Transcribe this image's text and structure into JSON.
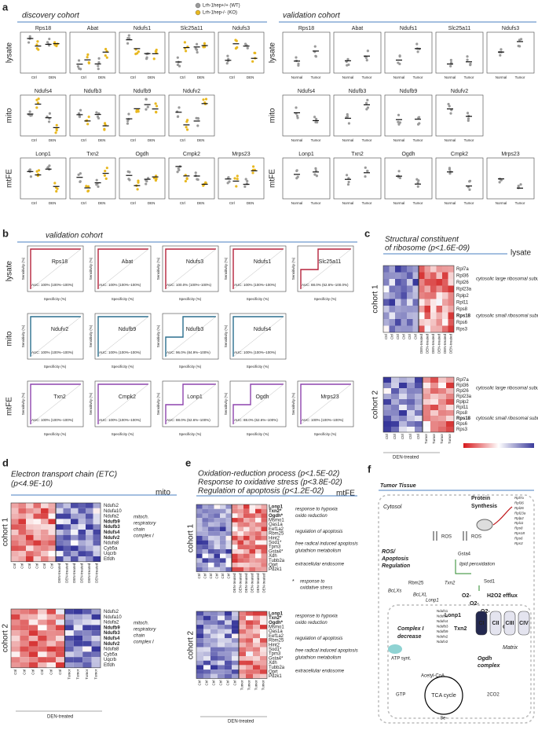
{
  "panel_a": {
    "letter": "a",
    "discovery_title": "discovery cohort",
    "validation_title": "validation cohort",
    "legend": [
      "Lrh-1hep+/+ (WT)",
      "Lrh-1hep-/- (KO)"
    ],
    "legend_colors": [
      "#9a9a9a",
      "#e8b820"
    ],
    "discovery_x": [
      "Ctrl",
      "DEN"
    ],
    "validation_x": [
      "Normal",
      "Tumor"
    ],
    "rows": [
      {
        "label": "lysate",
        "color": "#b5223b",
        "discovery": [
          "Rps18",
          "Abat",
          "Ndufs1",
          "Slc25a11",
          "Ndufs3"
        ],
        "validation": [
          "Rps18",
          "Abat",
          "Ndufs1",
          "Slc25a11",
          "Ndufs3"
        ]
      },
      {
        "label": "mito",
        "color": "#2b6f8e",
        "discovery": [
          "Ndufs4",
          "Ndufb3",
          "Ndufb9",
          "Ndufv2"
        ],
        "validation": [
          "Ndufs4",
          "Ndufb3",
          "Ndufb9",
          "Ndufv2"
        ]
      },
      {
        "label": "mtFE",
        "color": "#8e44ad",
        "discovery": [
          "Lonp1",
          "Txn2",
          "Ogdh",
          "Cmpk2",
          "Mrps23"
        ],
        "validation": [
          "Lonp1",
          "Txn2",
          "Ogdh",
          "Cmpk2",
          "Mrps23"
        ]
      }
    ]
  },
  "panel_b": {
    "letter": "b",
    "title": "validation cohort",
    "ylabel": "Sensitivity (%)",
    "xlabel": "Specificity (%)",
    "rows": [
      {
        "label": "lysate",
        "color": "#b5223b",
        "plots": [
          {
            "gene": "Rps18",
            "auc": "AUC: 100% (100%–100%)"
          },
          {
            "gene": "Abat",
            "auc": "AUC: 100% (100%–100%)"
          },
          {
            "gene": "Ndufs3",
            "auc": "AUC: 100.0% (100%–100%)"
          },
          {
            "gene": "Ndufs1",
            "auc": "AUC: 100% (100%–100%)"
          },
          {
            "gene": "Slc25a11",
            "auc": "AUC: 88.0% (62.6%–100.0%)"
          }
        ]
      },
      {
        "label": "mito",
        "color": "#2b6f8e",
        "plots": [
          {
            "gene": "Ndufv2",
            "auc": "AUC: 100% (100%–100%)"
          },
          {
            "gene": "Ndufb9",
            "auc": "AUC: 100% (100%–100%)"
          },
          {
            "gene": "Ndufb3",
            "auc": "AUC: 96.0% (84.9%–100%)"
          },
          {
            "gene": "Ndufs4",
            "auc": "AUC: 100% (100%–100%)"
          }
        ]
      },
      {
        "label": "mtFE",
        "color": "#8e44ad",
        "plots": [
          {
            "gene": "Txn2",
            "auc": "AUC: 100% (100%–100%)"
          },
          {
            "gene": "Cmpk2",
            "auc": "AUC: 100% (100%–100%)"
          },
          {
            "gene": "Lonp1",
            "auc": "AUC: 88.0% (62.6%–100%)"
          },
          {
            "gene": "Ogdh",
            "auc": "AUC: 88.0% (62.6%–100%)"
          },
          {
            "gene": "Mrps23",
            "auc": "AUC: 100% (100%–100%)"
          }
        ]
      }
    ]
  },
  "panel_c": {
    "letter": "c",
    "title": [
      "Structural constituent",
      "of ribosome (p<1.6E-09)"
    ],
    "tag": "lysate",
    "cohorts": [
      "cohort 1",
      "cohort 2"
    ],
    "genes": [
      "Rpl7a",
      "Rpl36",
      "Rpl26",
      "Rpl23a",
      "Rplp2",
      "Rpl11",
      "Rps8",
      "Rps18",
      "Rps6",
      "Rps3"
    ],
    "annotations": [
      "cytosolic large ribosomal subunit",
      "cytosolic small ribosomal subunit"
    ],
    "cohort1_columns": [
      "Ctrl",
      "Ctrl",
      "Ctrl",
      "Ctrl",
      "Ctrl",
      "Ctrl",
      "DEN-treated",
      "DEN-treated",
      "DEN-treated",
      "DEN-treated",
      "DEN-treated",
      "DEN-treated"
    ],
    "cohort2_columns": [
      "Ctrl",
      "Ctrl",
      "Ctrl",
      "Ctrl",
      "Ctrl",
      "Tumor",
      "Tumor",
      "Tumor",
      "Tumor"
    ],
    "footer": "DEN-treated"
  },
  "panel_d": {
    "letter": "d",
    "title": [
      "Electron transport chain (ETC)",
      "(p<4.9E-10)"
    ],
    "tag": "mito",
    "cohorts": [
      "cohort 1",
      "cohort 2"
    ],
    "genes": [
      "Ndufs2",
      "Ndufa10",
      "Ndufa2",
      "Ndufb9",
      "Ndufb3",
      "Ndufs4",
      "Ndufv2",
      "Ndufa8",
      "Cyb5a",
      "Uqcrb",
      "Etfdh"
    ],
    "annotation": [
      "mitoch.",
      "respiratory",
      "chain",
      "complex I"
    ],
    "cohort1_columns": [
      "Ctrl",
      "Ctrl",
      "Ctrl",
      "Ctrl",
      "Ctrl",
      "Ctrl",
      "DEN-treated",
      "DEN-treated",
      "DEN-treated",
      "DEN-treated",
      "DEN-treated",
      "DEN-treated"
    ],
    "cohort2_columns": [
      "Ctrl",
      "Ctrl",
      "Ctrl",
      "Ctrl",
      "Ctrl",
      "Ctrl",
      "Tumor",
      "Tumor",
      "Tumor",
      "Tumor"
    ],
    "footer": "DEN-treated"
  },
  "panel_e": {
    "letter": "e",
    "title": [
      "Oxidation-reduction process (p<1.5E-02)",
      "Response to oxidative stress (p<3.8E-02)",
      "Regulation of apoptosis (p<1.2E-02)"
    ],
    "tag": "mtFE",
    "cohorts": [
      "cohort 1",
      "cohort 2"
    ],
    "genes": [
      "Lonp1",
      "Txn2*",
      "Ogdh*",
      "Msmo1",
      "Oas1a",
      "Eef1a2",
      "Rbm25",
      "Hint2",
      "Sod1*",
      "Tpm3",
      "Gsta4*",
      "Xdh",
      "Tubb2a",
      "Qprt",
      "Pdzk1"
    ],
    "annotations": [
      "response to hypoxia",
      "oxido reduction",
      "regulation of apoptosis",
      "free radical induced apoptosis",
      "glutathion metabolism",
      "extracellular endosome"
    ],
    "star_note": [
      "*",
      "response to",
      "oxidative stress"
    ],
    "cohort1_columns": [
      "Ctrl",
      "Ctrl",
      "Ctrl",
      "Ctrl",
      "Ctrl",
      "Ctrl",
      "DEN-treated",
      "DEN-treated",
      "DEN-treated",
      "DEN-treated",
      "DEN-treated",
      "DEN-treated"
    ],
    "cohort2_columns": [
      "Ctrl",
      "Ctrl",
      "Ctrl",
      "Ctrl",
      "Ctrl",
      "Ctrl",
      "Tumor",
      "Tumor",
      "Tumor",
      "Tumor"
    ],
    "footer": "DEN-treated"
  },
  "panel_f": {
    "letter": "f",
    "title": "Tumor Tissue",
    "cytosol": "Cytosol",
    "protein_synthesis": [
      "Protein",
      "Synthesis"
    ],
    "ribosome_genes": [
      "Rpl7a",
      "Rpl36",
      "Rpl26",
      "Rpl23a",
      "Rplp2",
      "Rpl11",
      "Rps8",
      "Rps18",
      "Rps6",
      "Rps3"
    ],
    "ros": "ROS",
    "ros_apoptosis": [
      "ROS/",
      "Apoptosis",
      "Regulation"
    ],
    "gsta4": "Gsta4",
    "lipid": "lipid peroxidation",
    "sod1": "Sod1",
    "h2o2": "H2O2 efflux",
    "o2": "O2-",
    "rbm25": "Rbm25",
    "bclxs": "BcLXs",
    "bclxl": "BcLXL",
    "lonp1": "Lonp1",
    "txn2": "Txn2",
    "complex_decrease": [
      "Complex I",
      "decrease"
    ],
    "nduf": [
      "Ndufs1",
      "Ndufs3",
      "Ndufs4",
      "Ndufb3",
      "Ndufb9",
      "Ndufs2",
      "Ndufv2"
    ],
    "atp": "ATP synt.",
    "complexes": [
      "CI",
      "CII",
      "CIII",
      "CIV"
    ],
    "matrix": "Matrix",
    "acetyl": "Acetyl-CoA",
    "gtp": "GTP",
    "tca": "TCA cycle",
    "co2": "2CO2",
    "electrons": "8e-",
    "ogdh": [
      "Ogdh",
      "complex"
    ]
  }
}
